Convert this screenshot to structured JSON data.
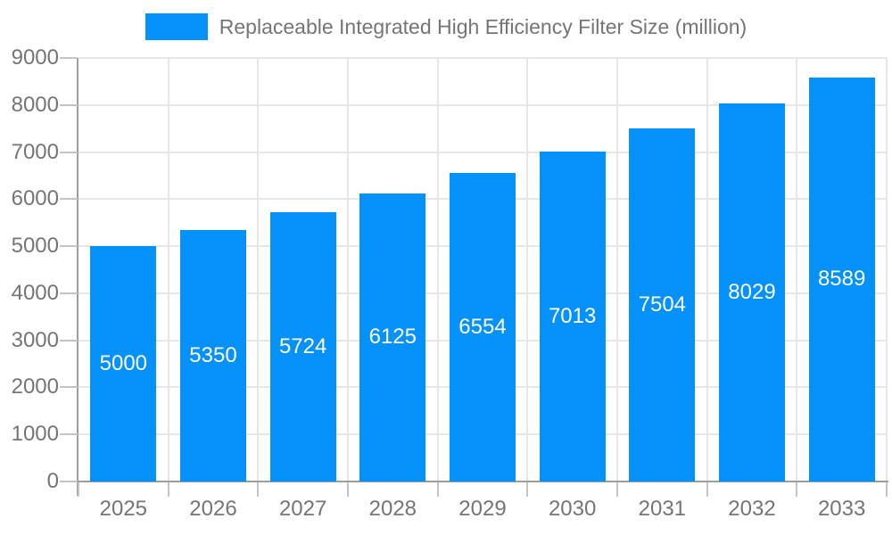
{
  "chart_data": {
    "type": "bar",
    "title": "Replaceable Integrated High Efficiency Filter Size (million)",
    "categories": [
      "2025",
      "2026",
      "2027",
      "2028",
      "2029",
      "2030",
      "2031",
      "2032",
      "2033"
    ],
    "values": [
      5000,
      5350,
      5724,
      6125,
      6554,
      7013,
      7504,
      8029,
      8589
    ],
    "bar_value_labels": [
      "5000",
      "5350",
      "5724",
      "6125",
      "6554",
      "7013",
      "7504",
      "8029",
      "8589"
    ],
    "xlabel": "",
    "ylabel": "",
    "ylim": [
      0,
      9000
    ],
    "ytick_interval": 1000,
    "ytick_labels": [
      "0",
      "1000",
      "2000",
      "3000",
      "4000",
      "5000",
      "6000",
      "7000",
      "8000",
      "9000"
    ],
    "legend_position": "top-center",
    "grid": "horizontal and vertical light gridlines",
    "colors": {
      "bar": "#0591fa",
      "axis_text": "#757575",
      "bar_label_text": "#ffffff",
      "grid_line": "#e7e7e7",
      "axis_line": "#9e9e9e",
      "tick_line": "#c4c4c4"
    }
  }
}
